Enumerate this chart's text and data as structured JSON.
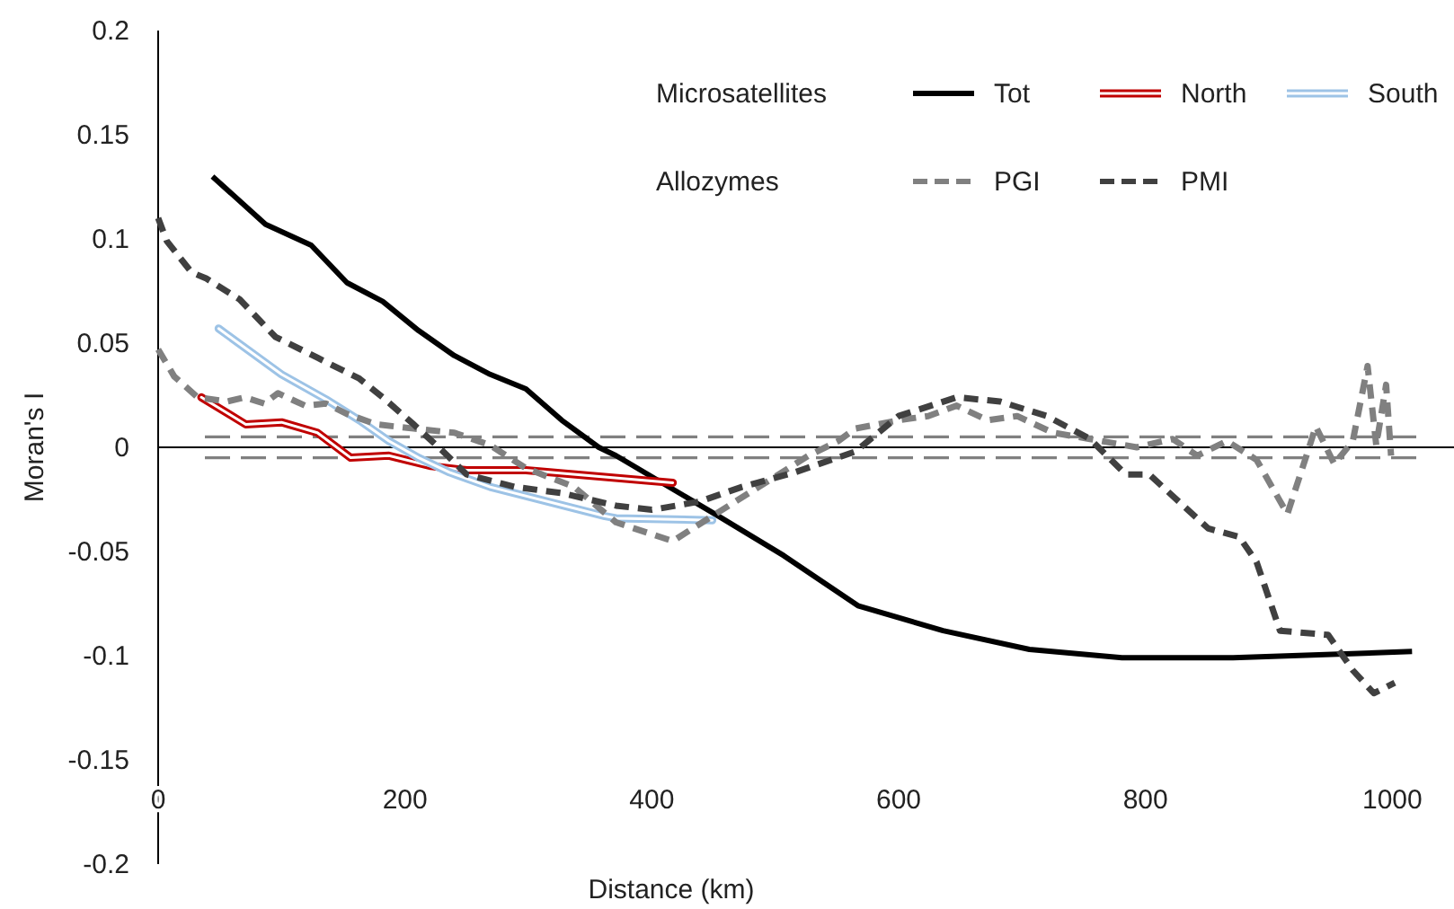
{
  "chart_data": {
    "type": "line",
    "xlabel": "Distance (km)",
    "ylabel": "Moran's I",
    "xlim": [
      0,
      1050
    ],
    "ylim": [
      -0.2,
      0.2
    ],
    "xticks": [
      0,
      200,
      400,
      600,
      800,
      1000
    ],
    "yticks": [
      -0.2,
      -0.15,
      -0.1,
      -0.05,
      0,
      0.05,
      0.1,
      0.15,
      0.2
    ],
    "legend": "top right",
    "marker": "none",
    "annotations": [
      "Microsatellites",
      "Allozymes"
    ],
    "ref_lines": [
      {
        "axis": "y",
        "value": 0.005,
        "color": "#808080",
        "line_style": "dashed"
      },
      {
        "axis": "y",
        "value": -0.005,
        "color": "#808080",
        "line_style": "dashed"
      }
    ],
    "series": [
      {
        "name": "Tot",
        "color": "#000000",
        "line_style": "solid",
        "x": [
          44,
          87,
          124,
          153,
          182,
          211,
          240,
          269,
          298,
          327,
          357,
          371,
          454,
          507,
          567,
          636,
          706,
          781,
          871,
          1016
        ],
        "values": [
          0.13,
          0.107,
          0.097,
          0.079,
          0.07,
          0.056,
          0.044,
          0.035,
          0.028,
          0.013,
          0.0,
          -0.004,
          -0.033,
          -0.052,
          -0.076,
          -0.088,
          -0.097,
          -0.101,
          -0.101,
          -0.098
        ]
      },
      {
        "name": "North",
        "color": "#c00000",
        "line_style": "solid",
        "x": [
          35,
          71,
          100,
          129,
          156,
          187,
          221,
          250,
          298,
          417
        ],
        "values": [
          0.024,
          0.011,
          0.012,
          0.007,
          -0.005,
          -0.004,
          -0.009,
          -0.011,
          -0.011,
          -0.017
        ]
      },
      {
        "name": "South",
        "color": "#9dc3e6",
        "line_style": "solid",
        "x": [
          49,
          100,
          136,
          163,
          187,
          211,
          236,
          269,
          362,
          371,
          449
        ],
        "values": [
          0.057,
          0.035,
          0.023,
          0.013,
          0.003,
          -0.005,
          -0.012,
          -0.019,
          -0.033,
          -0.034,
          -0.035
        ]
      },
      {
        "name": "PGI",
        "color": "#808080",
        "line_style": "dashed",
        "x": [
          0,
          13,
          32,
          56,
          70,
          86,
          97,
          119,
          136,
          153,
          177,
          207,
          240,
          269,
          298,
          337,
          371,
          417,
          449,
          527,
          551,
          565,
          600,
          624,
          647,
          672,
          696,
          725,
          755,
          793,
          822,
          842,
          866,
          890,
          915,
          931,
          938,
          953,
          968,
          980,
          987,
          995,
          999
        ],
        "values": [
          0.047,
          0.034,
          0.024,
          0.022,
          0.024,
          0.021,
          0.026,
          0.02,
          0.021,
          0.016,
          0.011,
          0.009,
          0.007,
          0.001,
          -0.01,
          -0.019,
          -0.036,
          -0.045,
          -0.033,
          -0.004,
          0.003,
          0.009,
          0.013,
          0.015,
          0.02,
          0.013,
          0.015,
          0.007,
          0.004,
          0.0,
          0.004,
          -0.004,
          0.003,
          -0.006,
          -0.032,
          -0.003,
          0.01,
          -0.008,
          0.003,
          0.039,
          0.001,
          0.03,
          -0.004
        ]
      },
      {
        "name": "PMI",
        "color": "#404040",
        "line_style": "dashed",
        "x": [
          0,
          7,
          27,
          39,
          66,
          95,
          129,
          163,
          182,
          207,
          231,
          250,
          289,
          327,
          371,
          400,
          439,
          473,
          516,
          565,
          600,
          647,
          682,
          720,
          755,
          784,
          803,
          851,
          876,
          890,
          909,
          948,
          968,
          985,
          1002
        ],
        "values": [
          0.11,
          0.099,
          0.084,
          0.081,
          0.071,
          0.053,
          0.043,
          0.033,
          0.024,
          0.011,
          -0.002,
          -0.013,
          -0.019,
          -0.022,
          -0.028,
          -0.03,
          -0.026,
          -0.019,
          -0.012,
          -0.002,
          0.015,
          0.024,
          0.022,
          0.015,
          0.004,
          -0.013,
          -0.013,
          -0.039,
          -0.043,
          -0.055,
          -0.088,
          -0.09,
          -0.107,
          -0.118,
          -0.113
        ]
      }
    ]
  }
}
